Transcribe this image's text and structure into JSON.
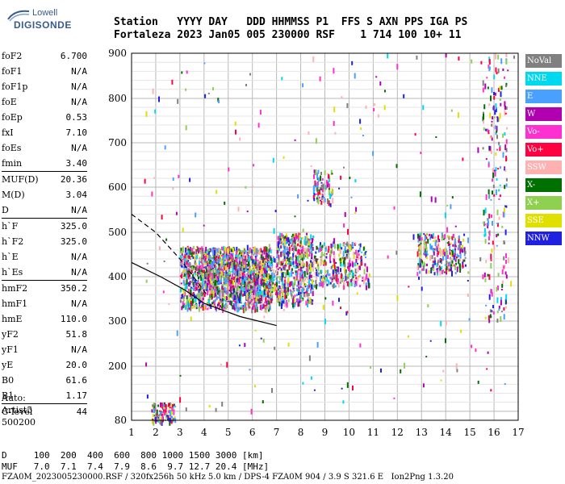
{
  "logo": {
    "line1": "Lowell",
    "line2": "DIGISONDE"
  },
  "header": {
    "line1": "Station   YYYY DAY   DDD HHMMSS P1  FFS S AXN PPS IGA PS",
    "line2": "Fortaleza 2023 Jan05 005 230000 RSF    1 714 100 10+ 11"
  },
  "params": {
    "groups": [
      [
        {
          "label": "foF2",
          "value": "6.700"
        },
        {
          "label": "foF1",
          "value": "N/A"
        },
        {
          "label": "foF1p",
          "value": "N/A"
        },
        {
          "label": "foE",
          "value": "N/A"
        },
        {
          "label": "foEp",
          "value": "0.53"
        },
        {
          "label": "fxI",
          "value": "7.10"
        },
        {
          "label": "foEs",
          "value": "N/A"
        },
        {
          "label": "fmin",
          "value": "3.40"
        }
      ],
      [
        {
          "label": "MUF(D)",
          "value": "20.36"
        },
        {
          "label": "M(D)",
          "value": "3.04"
        },
        {
          "label": "D",
          "value": "N/A"
        }
      ],
      [
        {
          "label": "h`F",
          "value": "325.0"
        },
        {
          "label": "h`F2",
          "value": "325.0"
        },
        {
          "label": "h`E",
          "value": "N/A"
        },
        {
          "label": "h`Es",
          "value": "N/A"
        }
      ],
      [
        {
          "label": "hmF2",
          "value": "350.2"
        },
        {
          "label": "hmF1",
          "value": "N/A"
        },
        {
          "label": "hmE",
          "value": "110.0"
        },
        {
          "label": "yF2",
          "value": "51.8"
        },
        {
          "label": "yF1",
          "value": "N/A"
        },
        {
          "label": "yE",
          "value": "20.0"
        },
        {
          "label": "B0",
          "value": "61.6"
        },
        {
          "label": "B1",
          "value": "1.17"
        }
      ],
      [
        {
          "label": "C-level",
          "value": "44"
        }
      ]
    ]
  },
  "auto": {
    "line1": "Auto:",
    "line2": "Artist5",
    "line3": "500200"
  },
  "legend": [
    {
      "label": "NoVal",
      "color": "#808080"
    },
    {
      "label": "NNE",
      "color": "#00d8f0"
    },
    {
      "label": "E",
      "color": "#4aa0ff"
    },
    {
      "label": "W",
      "color": "#b000b0"
    },
    {
      "label": "Vo-",
      "color": "#ff30d0"
    },
    {
      "label": "Vo+",
      "color": "#ff0040"
    },
    {
      "label": "SSW",
      "color": "#ffb0b0"
    },
    {
      "label": "X-",
      "color": "#007000"
    },
    {
      "label": "X+",
      "color": "#90d050"
    },
    {
      "label": "SSE",
      "color": "#e0e000"
    },
    {
      "label": "NNW",
      "color": "#2020e0"
    }
  ],
  "chart_data": {
    "type": "scatter",
    "xlim": [
      1,
      17
    ],
    "ylim": [
      80,
      900
    ],
    "x_ticks": [
      1,
      2,
      3,
      4,
      5,
      6,
      7,
      8,
      9,
      10,
      11,
      12,
      13,
      14,
      15,
      16,
      17
    ],
    "y_ticks": [
      80,
      200,
      300,
      400,
      500,
      600,
      700,
      800,
      900
    ],
    "grid": true
  },
  "footer": {
    "line1": "D     100  200  400  600  800 1000 1500 3000 [km]",
    "line2": "MUF   7.0  7.1  7.4  7.9  8.6  9.7 12.7 20.4 [MHz]",
    "line3": "FZA0M_2023005230000.RSF / 320fx256h 50 kHz 5.0 km / DPS-4 FZA0M 904 / 3.9 S 321.6 E   Ion2Png 1.3.20"
  }
}
